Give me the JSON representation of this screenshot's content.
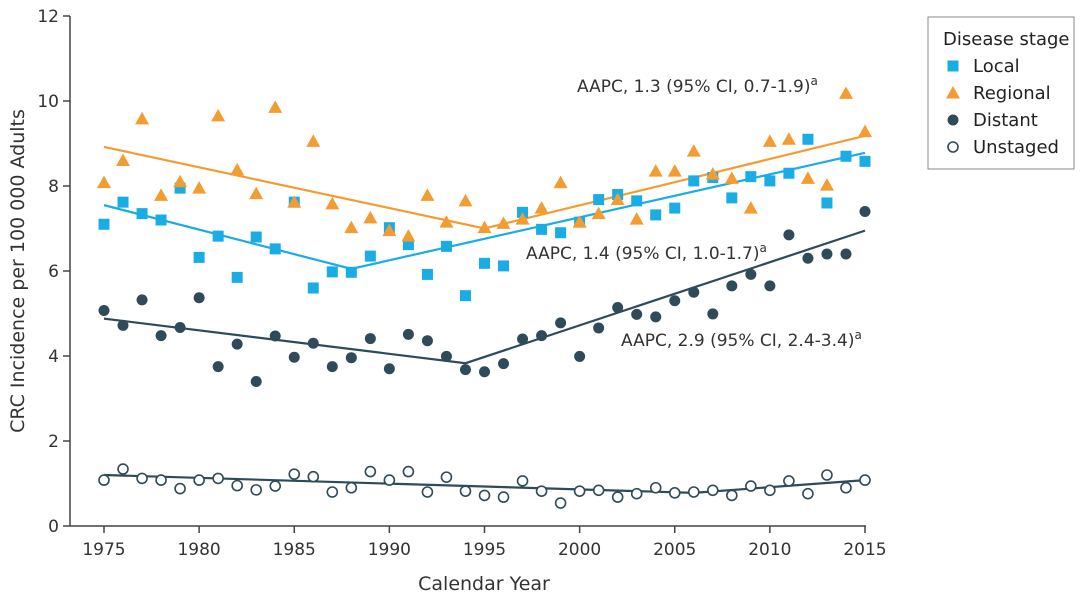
{
  "chart_data": {
    "type": "scatter",
    "xlabel": "Calendar Year",
    "ylabel": "CRC Incidence per 100 000 Adults",
    "xlim": [
      1973,
      2016
    ],
    "ylim": [
      0,
      12
    ],
    "xticks": [
      1975,
      1980,
      1985,
      1990,
      1995,
      2000,
      2005,
      2010,
      2015
    ],
    "yticks": [
      0,
      2,
      4,
      6,
      8,
      10,
      12
    ],
    "grid": false,
    "legend": {
      "title": "Disease stage",
      "position": "top-right"
    },
    "x": [
      1975,
      1976,
      1977,
      1978,
      1979,
      1980,
      1981,
      1982,
      1983,
      1984,
      1985,
      1986,
      1987,
      1988,
      1989,
      1990,
      1991,
      1992,
      1993,
      1994,
      1995,
      1996,
      1997,
      1998,
      1999,
      2000,
      2001,
      2002,
      2003,
      2004,
      2005,
      2006,
      2007,
      2008,
      2009,
      2010,
      2011,
      2012,
      2013,
      2014,
      2015
    ],
    "series": [
      {
        "name": "Local",
        "marker": "square",
        "color": "#1aace4",
        "values": [
          7.1,
          7.62,
          7.35,
          7.2,
          7.95,
          6.32,
          6.82,
          5.85,
          6.8,
          6.52,
          7.62,
          5.6,
          5.98,
          5.97,
          6.35,
          7.02,
          6.62,
          5.92,
          6.58,
          5.42,
          6.18,
          6.12,
          7.38,
          6.98,
          6.9,
          7.15,
          7.68,
          7.8,
          7.65,
          7.32,
          7.48,
          8.12,
          8.2,
          7.72,
          8.22,
          8.12,
          8.3,
          9.1,
          7.6,
          8.7,
          8.58
        ],
        "trend": [
          [
            1975,
            7.55
          ],
          [
            1988,
            6.05
          ],
          [
            2015,
            8.78
          ]
        ]
      },
      {
        "name": "Regional",
        "marker": "triangle",
        "color": "#f39c32",
        "values": [
          8.08,
          8.6,
          9.58,
          7.78,
          8.1,
          7.95,
          9.65,
          8.38,
          7.82,
          9.85,
          7.62,
          9.05,
          7.58,
          7.02,
          7.25,
          6.95,
          6.82,
          7.78,
          7.15,
          7.65,
          7.02,
          7.12,
          7.22,
          7.48,
          8.08,
          7.15,
          7.35,
          7.68,
          7.22,
          8.35,
          8.35,
          8.82,
          8.28,
          8.18,
          7.48,
          9.05,
          9.1,
          8.18,
          8.02,
          10.18,
          9.28
        ],
        "trend": [
          [
            1975,
            8.92
          ],
          [
            1995,
            7.0
          ],
          [
            2015,
            9.18
          ]
        ],
        "annotation": "AAPC, 1.3 (95% CI, 0.7-1.9)",
        "annotation_sup": "a"
      },
      {
        "name": "Distant",
        "marker": "circle",
        "color": "#2f4a59",
        "values": [
          5.07,
          4.72,
          5.32,
          4.48,
          4.67,
          5.37,
          3.75,
          4.28,
          3.4,
          4.47,
          3.97,
          4.3,
          3.75,
          3.96,
          4.41,
          3.7,
          4.51,
          4.36,
          3.99,
          3.68,
          3.63,
          3.82,
          4.4,
          4.48,
          4.78,
          3.99,
          4.66,
          5.14,
          4.98,
          4.92,
          5.3,
          5.5,
          4.99,
          5.65,
          5.92,
          5.65,
          6.85,
          6.3,
          6.4,
          6.4,
          7.4
        ],
        "trend": [
          [
            1975,
            4.88
          ],
          [
            1994,
            3.83
          ],
          [
            2015,
            6.95
          ]
        ],
        "annotation": "AAPC, 2.9 (95% CI, 2.4-3.4)",
        "annotation_sup": "a"
      },
      {
        "name": "Unstaged",
        "marker": "open-circle",
        "color": "#2f4a59",
        "values": [
          1.08,
          1.34,
          1.12,
          1.08,
          0.88,
          1.08,
          1.12,
          0.95,
          0.85,
          0.94,
          1.22,
          1.16,
          0.8,
          0.9,
          1.28,
          1.08,
          1.28,
          0.8,
          1.15,
          0.82,
          0.72,
          0.68,
          1.06,
          0.82,
          0.54,
          0.82,
          0.84,
          0.68,
          0.76,
          0.9,
          0.78,
          0.8,
          0.84,
          0.72,
          0.94,
          0.84,
          1.06,
          0.76,
          1.2,
          0.9,
          1.08
        ],
        "trend": [
          [
            1975,
            1.2
          ],
          [
            2006,
            0.78
          ],
          [
            2015,
            1.08
          ]
        ]
      }
    ],
    "extra_annotations": [
      {
        "text": "AAPC, 1.4 (95% CI, 1.0-1.7)",
        "sup": "a",
        "series": "Local"
      }
    ]
  }
}
